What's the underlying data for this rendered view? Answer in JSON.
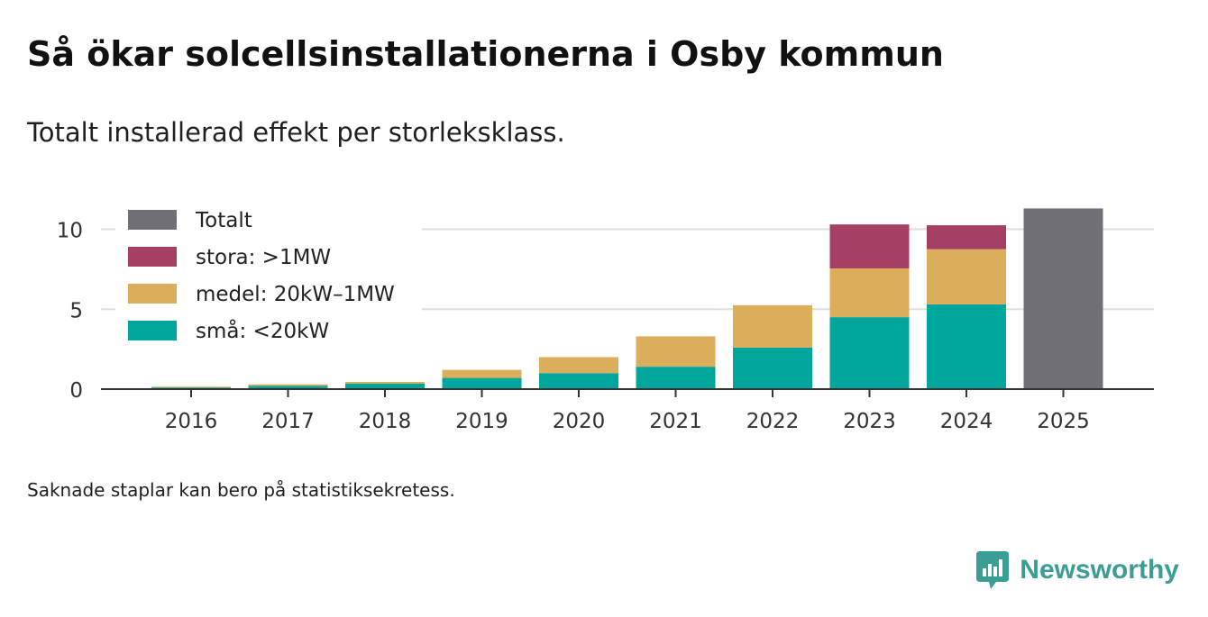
{
  "title": "Så ökar solcellsinstallationerna i Osby kommun",
  "subtitle": "Totalt installerad effekt per storleksklass.",
  "note": "Saknade staplar kan bero på statistiksekretess.",
  "brand": {
    "name": "Newsworthy",
    "icon": "bar-chart-speech-bubble-icon",
    "color": "#3a9e95"
  },
  "chart_data": {
    "type": "bar",
    "stacked": true,
    "categories": [
      "2016",
      "2017",
      "2018",
      "2019",
      "2020",
      "2021",
      "2022",
      "2023",
      "2024",
      "2025"
    ],
    "series": [
      {
        "name": "små: <20kW",
        "color": "#00a69c",
        "values": [
          0.1,
          0.2,
          0.35,
          0.7,
          1.0,
          1.4,
          2.6,
          4.5,
          5.3,
          null
        ]
      },
      {
        "name": "medel: 20kW–1MW",
        "color": "#dcad5a",
        "values": [
          0.05,
          0.1,
          0.1,
          0.5,
          1.0,
          1.9,
          2.65,
          3.05,
          3.45,
          null
        ]
      },
      {
        "name": "stora: >1MW",
        "color": "#a63f66",
        "values": [
          null,
          null,
          null,
          null,
          null,
          null,
          null,
          2.75,
          1.5,
          null
        ]
      },
      {
        "name": "Totalt",
        "color": "#706f75",
        "values": [
          null,
          null,
          null,
          null,
          null,
          null,
          null,
          null,
          null,
          11.3
        ]
      }
    ],
    "legend_order": [
      "Totalt",
      "stora: >1MW",
      "medel: 20kW–1MW",
      "små: <20kW"
    ],
    "legend_position": "top-left",
    "yticks": [
      "0",
      "5",
      "10"
    ],
    "ylim": [
      0,
      12
    ],
    "grid": true,
    "xlabel": "",
    "ylabel": ""
  }
}
